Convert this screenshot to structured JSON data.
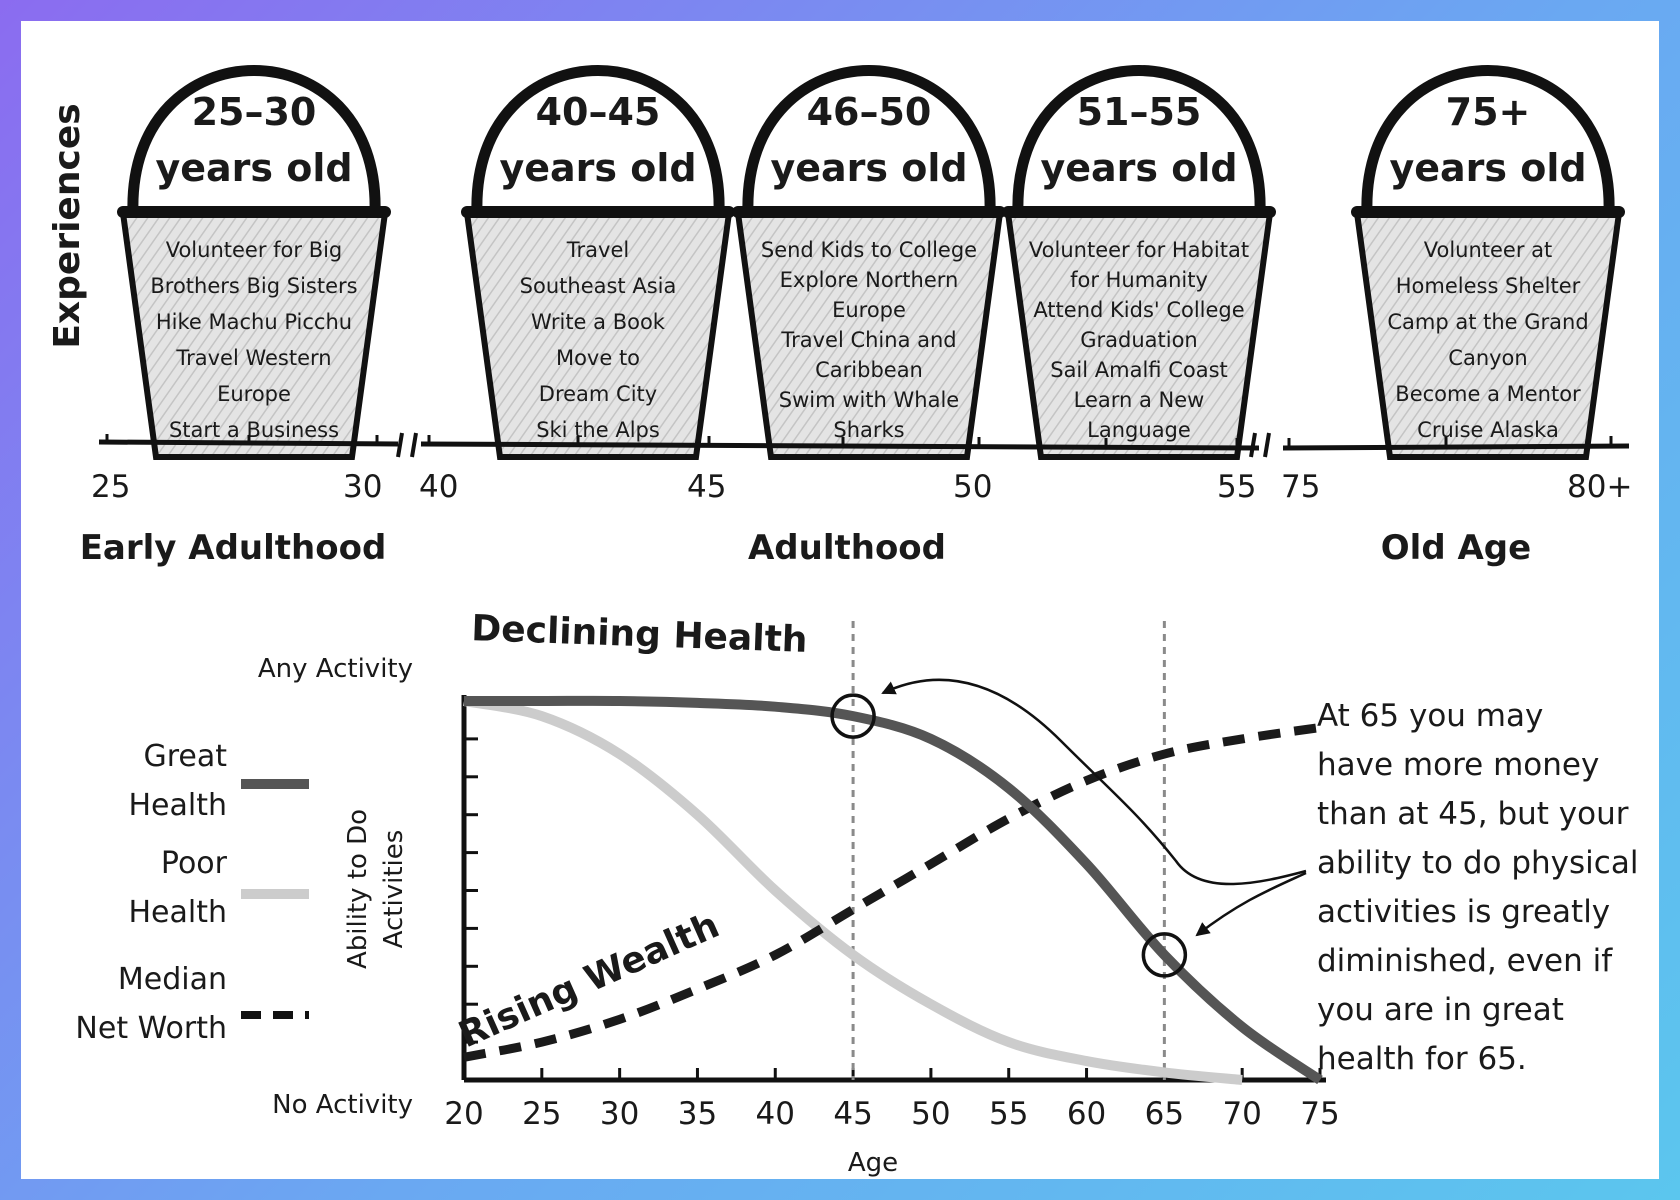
{
  "experiences_label": "Experiences",
  "buckets": [
    {
      "title_line1": "25–30",
      "title_line2": "years old",
      "items": [
        "Volunteer for Big",
        "Brothers Big Sisters",
        "Hike Machu Picchu",
        "Travel Western",
        "Europe",
        "Start a Business"
      ]
    },
    {
      "title_line1": "40–45",
      "title_line2": "years old",
      "items": [
        "Travel",
        "Southeast Asia",
        "Write a Book",
        "Move to",
        "Dream City",
        "Ski the Alps"
      ]
    },
    {
      "title_line1": "46–50",
      "title_line2": "years old",
      "items": [
        "Send Kids to College",
        "Explore Northern",
        "Europe",
        "Travel China and",
        "Caribbean",
        "Swim with Whale",
        "Sharks"
      ]
    },
    {
      "title_line1": "51–55",
      "title_line2": "years old",
      "items": [
        "Volunteer for Habitat",
        "for Humanity",
        "Attend Kids' College",
        "Graduation",
        "Sail Amalfi Coast",
        "Learn a New",
        "Language"
      ]
    },
    {
      "title_line1": "75+",
      "title_line2": "years old",
      "items": [
        "Volunteer at",
        "Homeless Shelter",
        "Camp at the Grand",
        "Canyon",
        "Become a Mentor",
        "Cruise Alaska"
      ]
    }
  ],
  "timeline_ticks": [
    "25",
    "30",
    "40",
    "45",
    "50",
    "55",
    "75",
    "80+"
  ],
  "life_stages": [
    "Early Adulthood",
    "Adulthood",
    "Old Age"
  ],
  "chart_data": {
    "type": "line",
    "title": "Declining Health",
    "xlabel": "Age",
    "ylabel_line1": "Ability to Do",
    "ylabel_line2": "Activities",
    "y_top_label": "Any Activity",
    "y_bottom_label": "No Activity",
    "xlim": [
      20,
      75
    ],
    "ylim": [
      0,
      1
    ],
    "x_ticks": [
      20,
      25,
      30,
      35,
      40,
      45,
      50,
      55,
      60,
      65,
      70,
      75
    ],
    "series": [
      {
        "name": "Great Health",
        "style": "solid",
        "color": "#555555",
        "x": [
          20,
          25,
          30,
          35,
          40,
          45,
          50,
          55,
          60,
          65,
          70,
          75
        ],
        "y": [
          1.0,
          1.0,
          1.0,
          0.995,
          0.985,
          0.96,
          0.9,
          0.77,
          0.57,
          0.33,
          0.14,
          0.0
        ]
      },
      {
        "name": "Poor Health",
        "style": "solid",
        "color": "#cccccc",
        "x": [
          20,
          25,
          30,
          35,
          40,
          45,
          50,
          55,
          60,
          65,
          70
        ],
        "y": [
          1.0,
          0.96,
          0.86,
          0.7,
          0.5,
          0.33,
          0.2,
          0.1,
          0.05,
          0.02,
          0.0
        ]
      },
      {
        "name": "Median Net Worth",
        "style": "dashed",
        "color": "#1a1a1a",
        "x": [
          20,
          25,
          30,
          35,
          40,
          45,
          50,
          55,
          60,
          65,
          70,
          75
        ],
        "y": [
          0.06,
          0.1,
          0.16,
          0.24,
          0.33,
          0.45,
          0.57,
          0.69,
          0.79,
          0.86,
          0.9,
          0.93
        ]
      }
    ],
    "series_label": "Rising Wealth",
    "reference_lines_x": [
      45,
      65
    ],
    "markers": [
      {
        "x": 45,
        "series": "Great Health"
      },
      {
        "x": 65,
        "series": "Great Health"
      }
    ],
    "legend_placement": "left",
    "grid": false
  },
  "legend": [
    {
      "line1": "Great",
      "line2": "Health"
    },
    {
      "line1": "Poor",
      "line2": "Health"
    },
    {
      "line1": "Median",
      "line2": "Net Worth"
    }
  ],
  "note_lines": [
    "At 65 you may",
    "have more money",
    "than at 45, but your",
    "ability to do physical",
    "activities is greatly",
    "diminished, even if",
    "you are in great",
    "health for 65."
  ]
}
